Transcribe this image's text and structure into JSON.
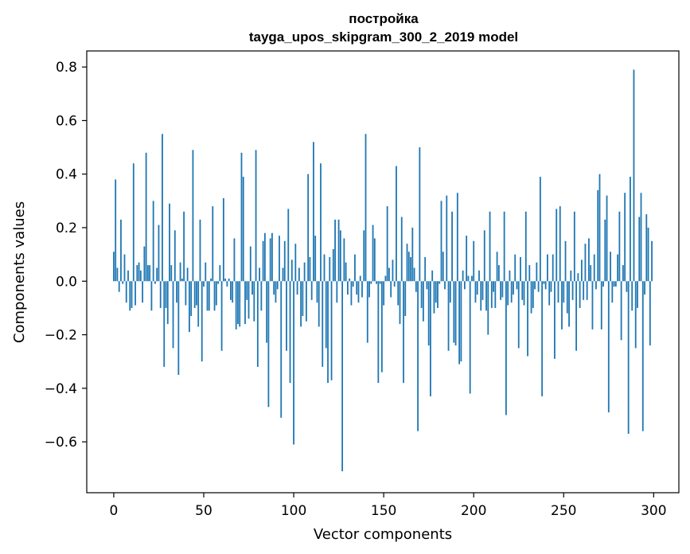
{
  "chart_data": {
    "type": "bar",
    "title_lines": [
      "постройка",
      "tayga_upos_skipgram_300_2_2019 model"
    ],
    "xlabel": "Vector components",
    "ylabel": "Components values",
    "xlim": [
      -15,
      314
    ],
    "ylim": [
      -0.79,
      0.86
    ],
    "xticks": [
      0,
      50,
      100,
      150,
      200,
      250,
      300
    ],
    "yticks": [
      -0.6,
      -0.4,
      -0.2,
      0.0,
      0.2,
      0.4,
      0.6,
      0.8
    ],
    "ytick_labels": [
      "−0.6",
      "−0.4",
      "−0.2",
      "0.0",
      "0.2",
      "0.4",
      "0.6",
      "0.8"
    ],
    "grid": false,
    "legend": "none",
    "bar_color": "#1f77b4",
    "values": [
      0.11,
      0.38,
      0.05,
      -0.04,
      0.23,
      -0.01,
      0.1,
      -0.08,
      0.04,
      -0.11,
      -0.1,
      0.44,
      -0.09,
      0.06,
      0.07,
      0.04,
      -0.08,
      0.13,
      0.48,
      0.06,
      0.06,
      -0.11,
      0.3,
      -0.01,
      0.05,
      0.21,
      -0.1,
      0.55,
      -0.32,
      -0.1,
      -0.16,
      0.29,
      0.06,
      -0.25,
      0.19,
      -0.08,
      -0.35,
      0.07,
      0.01,
      0.26,
      -0.09,
      0.05,
      -0.19,
      -0.13,
      0.49,
      -0.1,
      -0.09,
      -0.17,
      0.23,
      -0.3,
      -0.02,
      0.07,
      -0.11,
      -0.11,
      0.01,
      0.28,
      -0.11,
      -0.09,
      -0.01,
      0.06,
      -0.26,
      0.31,
      0.01,
      -0.02,
      0.01,
      -0.07,
      -0.08,
      0.16,
      -0.18,
      -0.16,
      -0.17,
      0.48,
      0.39,
      -0.16,
      -0.07,
      -0.14,
      0.13,
      -0.05,
      -0.15,
      0.49,
      -0.32,
      0.05,
      -0.11,
      0.15,
      0.18,
      -0.23,
      -0.47,
      0.16,
      0.18,
      -0.05,
      -0.08,
      -0.03,
      0.17,
      -0.51,
      0.05,
      0.15,
      -0.26,
      0.27,
      -0.38,
      0.08,
      -0.61,
      0.14,
      -0.05,
      0.05,
      -0.17,
      -0.13,
      0.07,
      -0.15,
      0.4,
      0.09,
      -0.07,
      0.52,
      0.17,
      -0.08,
      -0.17,
      0.44,
      -0.32,
      0.1,
      -0.25,
      -0.38,
      0.09,
      -0.37,
      0.12,
      0.23,
      -0.08,
      0.23,
      0.19,
      -0.71,
      0.16,
      0.07,
      -0.05,
      0.01,
      -0.09,
      -0.02,
      0.1,
      -0.05,
      -0.08,
      0.02,
      -0.06,
      0.19,
      0.55,
      -0.23,
      -0.06,
      -0.01,
      0.21,
      0.16,
      -0.01,
      -0.38,
      -0.01,
      -0.34,
      -0.09,
      0.02,
      0.28,
      0.05,
      -0.06,
      0.08,
      -0.02,
      0.43,
      -0.09,
      -0.16,
      0.24,
      -0.38,
      -0.13,
      0.14,
      0.11,
      0.09,
      0.2,
      0.05,
      -0.04,
      -0.56,
      0.5,
      -0.1,
      -0.15,
      0.09,
      -0.03,
      -0.24,
      -0.43,
      0.04,
      -0.12,
      -0.08,
      -0.1,
      -0.01,
      0.3,
      0.11,
      -0.03,
      0.32,
      -0.26,
      -0.08,
      0.26,
      -0.23,
      -0.24,
      0.33,
      -0.31,
      -0.3,
      0.04,
      -0.03,
      0.17,
      0.02,
      -0.42,
      0.02,
      0.15,
      -0.08,
      -0.05,
      0.04,
      -0.11,
      -0.07,
      0.19,
      -0.11,
      -0.2,
      0.26,
      -0.1,
      -0.04,
      -0.1,
      0.11,
      0.06,
      -0.07,
      -0.06,
      0.26,
      -0.5,
      -0.09,
      0.04,
      -0.08,
      -0.05,
      0.1,
      -0.03,
      -0.25,
      0.09,
      -0.07,
      -0.09,
      0.26,
      -0.28,
      0.06,
      -0.12,
      -0.1,
      -0.03,
      0.07,
      -0.04,
      0.39,
      -0.43,
      -0.01,
      -0.03,
      0.1,
      -0.09,
      -0.04,
      0.1,
      -0.29,
      0.27,
      -0.08,
      0.28,
      -0.18,
      -0.08,
      0.15,
      -0.12,
      -0.17,
      0.04,
      -0.07,
      0.26,
      -0.26,
      0.03,
      -0.1,
      0.08,
      -0.07,
      0.14,
      -0.07,
      0.16,
      0.06,
      -0.18,
      0.1,
      -0.03,
      0.34,
      0.4,
      -0.18,
      -0.02,
      0.23,
      0.32,
      -0.49,
      0.11,
      -0.08,
      -0.02,
      -0.02,
      0.1,
      0.26,
      -0.22,
      0.06,
      0.33,
      -0.04,
      -0.57,
      0.39,
      -0.11,
      0.79,
      -0.25,
      -0.1,
      0.24,
      0.33,
      -0.56,
      -0.05,
      0.25,
      0.2,
      -0.24,
      0.15
    ]
  }
}
